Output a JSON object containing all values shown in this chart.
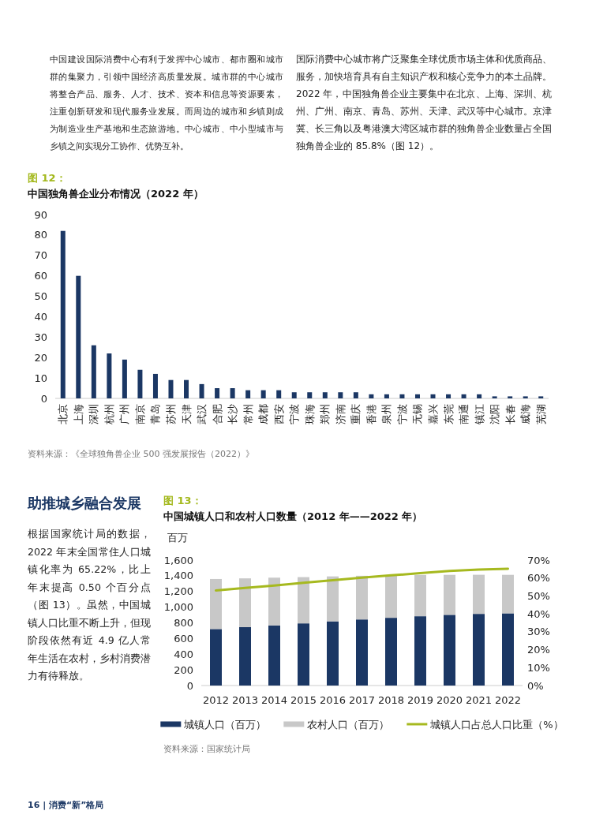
{
  "chart_data": [
    {
      "type": "bar",
      "subtitle": "图 12：",
      "title": "中国独角兽企业分布情况（2022 年）",
      "categories": [
        "北京",
        "上海",
        "深圳",
        "杭州",
        "广州",
        "南京",
        "青岛",
        "苏州",
        "天津",
        "武汉",
        "合肥",
        "长沙",
        "常州",
        "成都",
        "西安",
        "宁波",
        "珠海",
        "郑州",
        "济南",
        "重庆",
        "香港",
        "泉州",
        "宁波",
        "无锡",
        "嘉兴",
        "东莞",
        "南通",
        "镇江",
        "沈阳",
        "长春",
        "威海",
        "芜湖"
      ],
      "values": [
        82,
        60,
        26,
        22,
        19,
        14,
        12,
        9,
        9,
        7,
        5,
        5,
        4,
        4,
        4,
        3,
        3,
        3,
        3,
        3,
        2,
        2,
        2,
        2,
        2,
        2,
        2,
        2,
        1,
        1,
        1,
        1
      ],
      "color": "#1b3764",
      "ylim": [
        0,
        90
      ],
      "yticks": [
        0,
        10,
        20,
        30,
        40,
        50,
        60,
        70,
        80,
        90
      ],
      "annotations": [
        "中国建设国际消费中心有利于发挥中心城市、都市圈和城市群的集聚力，引领中国经济高质量发展。城市群的中心城市将整合产品、服务、人才、技术、资本和信息等资源要素，注重创新研发和现代服务业发展。而周边的城市和乡镇则成为制造业生产基地和生态旅游地。中心城市、中小型城市与乡镇之间实现分工协作、优势互补。",
        "国际消费中心城市将广泛聚集全球优质市场主体和优质商品、服务，加快培育具有自主知识产权和核心竞争力的本土品牌。2022 年，中国独角兽企业主要集中在北京、上海、深圳、杭州、广州、南京、青岛、苏州、天津、武汉等中心城市。京津冀、长三角以及粤港澳大湾区城市群的独角兽企业数量占全国独角兽企业的 85.8%（图 12）。",
        "资料来源：《全球独角兽企业 500 强发展报告（2022）》"
      ]
    },
    {
      "type": "bar",
      "stacked": true,
      "subtitle": "图 13：",
      "title": "中国城镇人口和农村人口数量（2012 年——2022 年）",
      "ylabel": "百万",
      "categories": [
        "2012",
        "2013",
        "2014",
        "2015",
        "2016",
        "2017",
        "2018",
        "2019",
        "2020",
        "2021",
        "2022"
      ],
      "series": [
        {
          "name": "城镇人口（百万）",
          "type": "bar",
          "color": "#1b3764",
          "values": [
            721,
            745,
            767,
            793,
            819,
            843,
            864,
            884,
            902,
            914,
            921
          ]
        },
        {
          "name": "农村人口（百万）",
          "type": "bar",
          "color": "#c8c8c8",
          "values": [
            638,
            622,
            609,
            590,
            573,
            557,
            541,
            526,
            510,
            499,
            491
          ]
        },
        {
          "name": "城镇人口占总人口比重（%）",
          "type": "line",
          "axis": "y2",
          "color": "#a6b91f",
          "values": [
            53.1,
            54.5,
            55.8,
            57.3,
            58.8,
            60.2,
            61.5,
            62.7,
            63.9,
            64.7,
            65.2
          ]
        }
      ],
      "ylim": [
        0,
        1600
      ],
      "yticks": [
        0,
        200,
        400,
        600,
        800,
        {
          "value": 1000,
          "label": "1,000"
        },
        {
          "value": 1200,
          "label": "1,200"
        },
        {
          "value": 1400,
          "label": "1,400"
        },
        {
          "value": 1600,
          "label": "1,600"
        }
      ],
      "y2lim": [
        0,
        70
      ],
      "y2ticks": [
        {
          "value": 0,
          "label": "0%"
        },
        {
          "value": 10,
          "label": "10%"
        },
        {
          "value": 20,
          "label": "20%"
        },
        {
          "value": 30,
          "label": "30%"
        },
        {
          "value": 40,
          "label": "40%"
        },
        {
          "value": 50,
          "label": "50%"
        },
        {
          "value": 60,
          "label": "60%"
        },
        {
          "value": 70,
          "label": "70%"
        }
      ],
      "legend": "bottom",
      "annotations": [
        "助推城乡融合发展",
        "根据国家统计局的数据，2022 年末全国常住人口城镇化率为 65.22%，比上年末提高 0.50 个百分点（图 13）。虽然，中国城镇人口比重不断上升，但现阶段依然有近 4.9 亿人常年生活在农村，乡村消费潜力有待释放。",
        "资料来源：国家统计局",
        "16 | 消费“新”格局"
      ]
    }
  ]
}
